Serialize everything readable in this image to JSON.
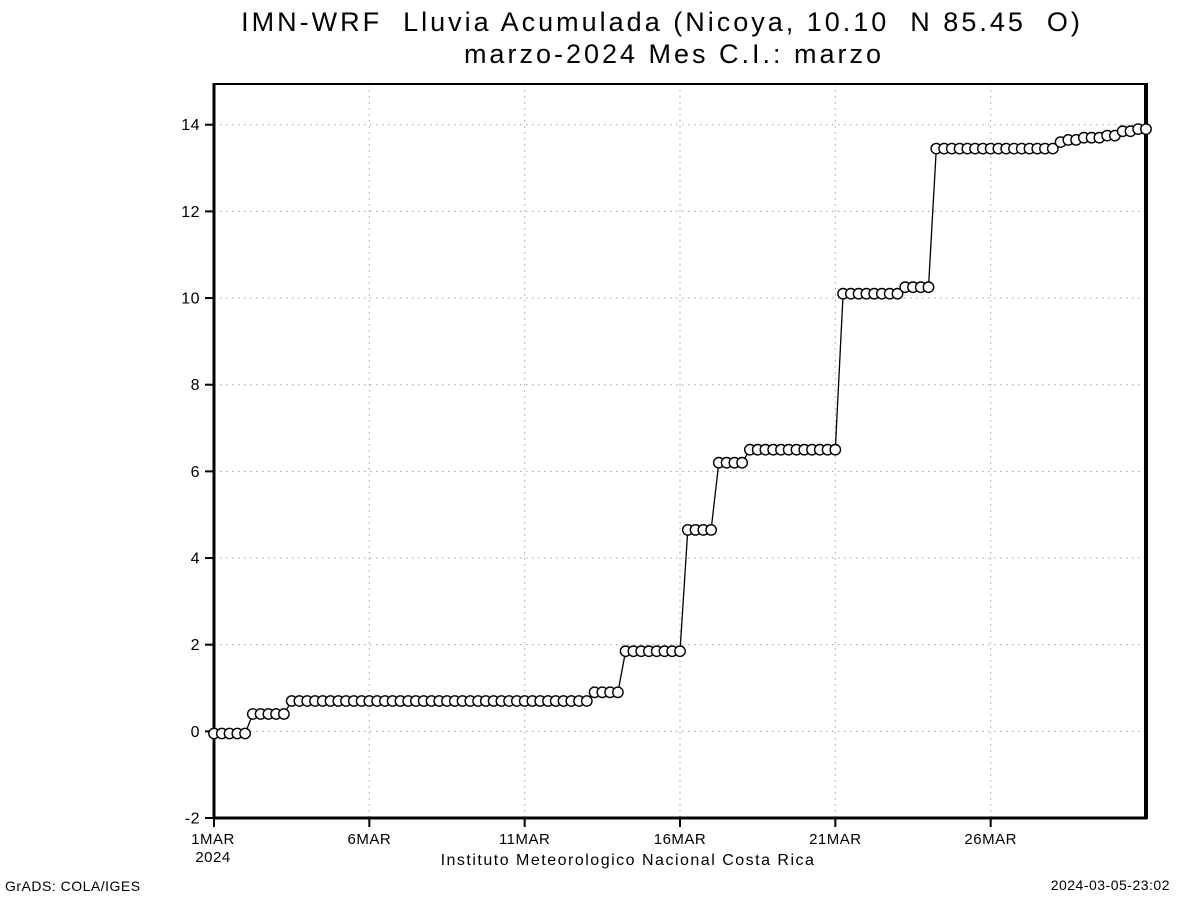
{
  "header": {
    "title_line1": "IMN-WRF  Lluvia Acumulada (Nicoya, 10.10  N 85.45  O)",
    "title_line2": "marzo-2024 Mes C.I.: marzo"
  },
  "footer": {
    "caption": "Instituto Meteorologico Nacional Costa Rica",
    "credit": "GrADS: COLA/IGES",
    "timestamp": "2024-03-05-23:02"
  },
  "chart_data": {
    "type": "line",
    "subtype": "step-accumulation-with-markers",
    "marker": "open-circle",
    "title": "IMN-WRF Lluvia Acumulada (Nicoya, 10.10 N 85.45 O)",
    "subtitle": "marzo-2024 Mes C.I.: marzo",
    "xlabel": "",
    "ylabel": "",
    "x_unit": "days since 1MAR2024",
    "xlim": [
      0,
      30
    ],
    "ylim": [
      -2,
      14.94
    ],
    "grid": true,
    "legend_position": "none",
    "y_ticks": [
      -2,
      0,
      2,
      4,
      6,
      8,
      10,
      12,
      14
    ],
    "x_ticks": [
      {
        "day": 0,
        "label": "1MAR",
        "sublabel": "2024"
      },
      {
        "day": 5,
        "label": "6MAR"
      },
      {
        "day": 10,
        "label": "11MAR"
      },
      {
        "day": 15,
        "label": "16MAR"
      },
      {
        "day": 20,
        "label": "21MAR"
      },
      {
        "day": 25,
        "label": "26MAR"
      }
    ],
    "colors": {
      "line": "#000000",
      "marker_stroke": "#000000",
      "marker_fill": "#ffffff",
      "grid": "#a0a0a0",
      "frame": "#000000",
      "background": "#ffffff"
    },
    "points": [
      [
        0,
        -0.05
      ],
      [
        0.25,
        -0.05
      ],
      [
        0.5,
        -0.05
      ],
      [
        0.75,
        -0.05
      ],
      [
        1,
        -0.05
      ],
      [
        1.25,
        0.4
      ],
      [
        1.5,
        0.4
      ],
      [
        1.75,
        0.4
      ],
      [
        2,
        0.4
      ],
      [
        2.25,
        0.4
      ],
      [
        2.5,
        0.7
      ],
      [
        2.75,
        0.7
      ],
      [
        3,
        0.7
      ],
      [
        3.25,
        0.7
      ],
      [
        3.5,
        0.7
      ],
      [
        3.75,
        0.7
      ],
      [
        4,
        0.7
      ],
      [
        4.25,
        0.7
      ],
      [
        4.5,
        0.7
      ],
      [
        4.75,
        0.7
      ],
      [
        5,
        0.7
      ],
      [
        5.25,
        0.7
      ],
      [
        5.5,
        0.7
      ],
      [
        5.75,
        0.7
      ],
      [
        6,
        0.7
      ],
      [
        6.25,
        0.7
      ],
      [
        6.5,
        0.7
      ],
      [
        6.75,
        0.7
      ],
      [
        7,
        0.7
      ],
      [
        7.25,
        0.7
      ],
      [
        7.5,
        0.7
      ],
      [
        7.75,
        0.7
      ],
      [
        8,
        0.7
      ],
      [
        8.25,
        0.7
      ],
      [
        8.5,
        0.7
      ],
      [
        8.75,
        0.7
      ],
      [
        9,
        0.7
      ],
      [
        9.25,
        0.7
      ],
      [
        9.5,
        0.7
      ],
      [
        9.75,
        0.7
      ],
      [
        10,
        0.7
      ],
      [
        10.25,
        0.7
      ],
      [
        10.5,
        0.7
      ],
      [
        10.75,
        0.7
      ],
      [
        11,
        0.7
      ],
      [
        11.25,
        0.7
      ],
      [
        11.5,
        0.7
      ],
      [
        11.75,
        0.7
      ],
      [
        12,
        0.7
      ],
      [
        12.25,
        0.9
      ],
      [
        12.5,
        0.9
      ],
      [
        12.75,
        0.9
      ],
      [
        13,
        0.9
      ],
      [
        13.25,
        1.85
      ],
      [
        13.5,
        1.85
      ],
      [
        13.75,
        1.85
      ],
      [
        14,
        1.85
      ],
      [
        14.25,
        1.85
      ],
      [
        14.5,
        1.85
      ],
      [
        14.75,
        1.85
      ],
      [
        15,
        1.85
      ],
      [
        15.25,
        4.65
      ],
      [
        15.5,
        4.65
      ],
      [
        15.75,
        4.65
      ],
      [
        16,
        4.65
      ],
      [
        16.25,
        6.2
      ],
      [
        16.5,
        6.2
      ],
      [
        16.75,
        6.2
      ],
      [
        17,
        6.2
      ],
      [
        17.25,
        6.5
      ],
      [
        17.5,
        6.5
      ],
      [
        17.75,
        6.5
      ],
      [
        18,
        6.5
      ],
      [
        18.25,
        6.5
      ],
      [
        18.5,
        6.5
      ],
      [
        18.75,
        6.5
      ],
      [
        19,
        6.5
      ],
      [
        19.25,
        6.5
      ],
      [
        19.5,
        6.5
      ],
      [
        19.75,
        6.5
      ],
      [
        20,
        6.5
      ],
      [
        20.25,
        10.1
      ],
      [
        20.5,
        10.1
      ],
      [
        20.75,
        10.1
      ],
      [
        21,
        10.1
      ],
      [
        21.25,
        10.1
      ],
      [
        21.5,
        10.1
      ],
      [
        21.75,
        10.1
      ],
      [
        22,
        10.1
      ],
      [
        22.25,
        10.25
      ],
      [
        22.5,
        10.25
      ],
      [
        22.75,
        10.25
      ],
      [
        23,
        10.25
      ],
      [
        23.25,
        13.45
      ],
      [
        23.5,
        13.45
      ],
      [
        23.75,
        13.45
      ],
      [
        24,
        13.45
      ],
      [
        24.25,
        13.45
      ],
      [
        24.5,
        13.45
      ],
      [
        24.75,
        13.45
      ],
      [
        25,
        13.45
      ],
      [
        25.25,
        13.45
      ],
      [
        25.5,
        13.45
      ],
      [
        25.75,
        13.45
      ],
      [
        26,
        13.45
      ],
      [
        26.25,
        13.45
      ],
      [
        26.5,
        13.45
      ],
      [
        26.75,
        13.45
      ],
      [
        27,
        13.45
      ],
      [
        27.25,
        13.6
      ],
      [
        27.5,
        13.65
      ],
      [
        27.75,
        13.65
      ],
      [
        28,
        13.7
      ],
      [
        28.25,
        13.7
      ],
      [
        28.5,
        13.7
      ],
      [
        28.75,
        13.75
      ],
      [
        29,
        13.75
      ],
      [
        29.25,
        13.85
      ],
      [
        29.5,
        13.85
      ],
      [
        29.75,
        13.9
      ],
      [
        30,
        13.9
      ]
    ]
  }
}
